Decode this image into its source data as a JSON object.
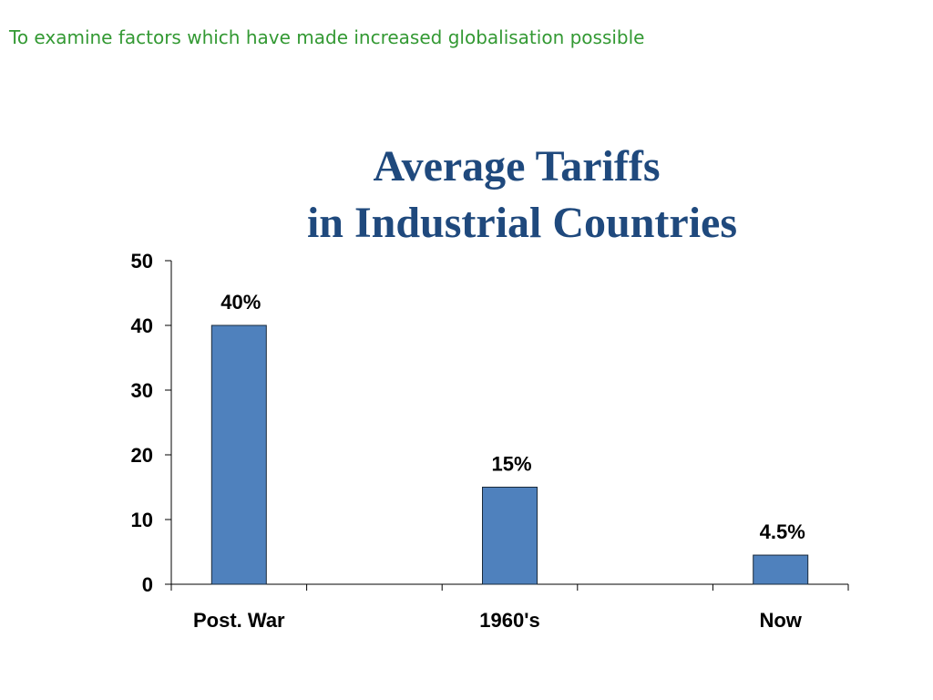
{
  "header": "To examine factors which have made increased globalisation possible",
  "chart_data": {
    "type": "bar",
    "title": [
      "Average Tariffs",
      "in Industrial Countries"
    ],
    "categories": [
      "Post. War",
      "1960's",
      "Now"
    ],
    "values": [
      40,
      15,
      4.5
    ],
    "value_labels": [
      "40%",
      "15%",
      "4.5%"
    ],
    "color": "#4f81bd",
    "ylim": [
      0,
      50
    ],
    "yticks": [
      0,
      10,
      20,
      30,
      40,
      50
    ]
  }
}
